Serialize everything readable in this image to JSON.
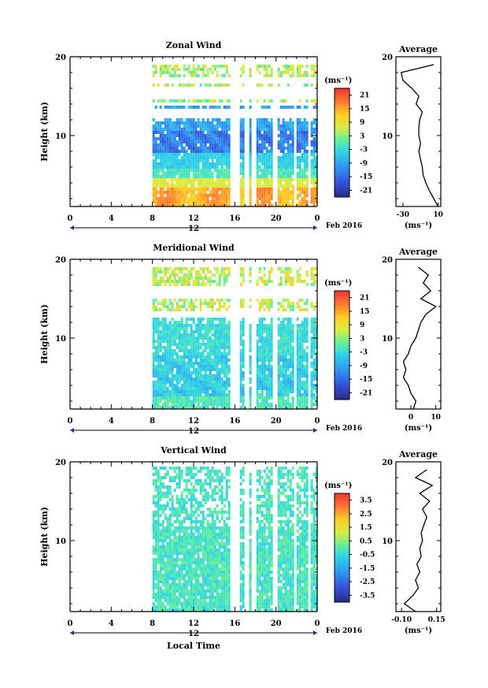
{
  "figure": {
    "date_label": "Feb 2016",
    "xlabel_bottom": "Local Time",
    "unit_label": "(ms⁻¹)",
    "axis_unit_label": "(ms⁻¹)",
    "average_title": "Average"
  },
  "chart_data": [
    {
      "type": "heatmap",
      "title": "Zonal Wind",
      "ylabel": "Height (km)",
      "xticks": [
        "0",
        "4",
        "8",
        "12",
        "16",
        "20",
        "0"
      ],
      "xlim": [
        0,
        24
      ],
      "day_label": "12",
      "yticks": [
        "20",
        "10"
      ],
      "ylim": [
        1,
        20
      ],
      "data_start_hour": 8,
      "colorbar_ticks": [
        "21",
        "15",
        "9",
        "3",
        "-3",
        "-9",
        "-15",
        "-21"
      ],
      "colorbar_range": [
        -24,
        24
      ],
      "profile": {
        "xticks": [
          "-30",
          "10"
        ],
        "x_tick_values": [
          -30,
          10
        ],
        "xlim": [
          -38,
          13
        ],
        "heights": [
          1,
          2,
          3,
          4,
          5,
          6,
          7,
          8,
          9,
          10,
          11,
          12,
          13,
          14,
          15,
          16,
          17,
          18,
          19
        ],
        "values": [
          10,
          5,
          0,
          -4,
          -7,
          -8,
          -10,
          -12,
          -10,
          -12,
          -12,
          -11,
          -8,
          -15,
          -12,
          -20,
          -30,
          -32,
          5
        ]
      }
    },
    {
      "type": "heatmap",
      "title": "Meridional Wind",
      "ylabel": "Height (km)",
      "xticks": [
        "0",
        "4",
        "8",
        "12",
        "16",
        "20",
        "0"
      ],
      "xlim": [
        0,
        24
      ],
      "day_label": "12",
      "yticks": [
        "20",
        "10"
      ],
      "ylim": [
        1,
        20
      ],
      "data_start_hour": 8,
      "colorbar_ticks": [
        "21",
        "15",
        "9",
        "3",
        "-3",
        "-9",
        "-15",
        "-21"
      ],
      "colorbar_range": [
        -24,
        24
      ],
      "profile": {
        "xticks": [
          "0",
          "10"
        ],
        "x_tick_values": [
          0,
          10
        ],
        "xlim": [
          -6,
          12
        ],
        "heights": [
          1,
          2,
          3,
          4,
          5,
          6,
          7,
          8,
          9,
          10,
          11,
          12,
          13,
          14,
          15,
          16,
          17,
          18,
          19
        ],
        "values": [
          1,
          2,
          0,
          -1,
          -3,
          -2,
          -3,
          -1,
          0,
          2,
          3,
          4,
          6,
          10,
          4,
          8,
          5,
          7,
          3
        ]
      }
    },
    {
      "type": "heatmap",
      "title": "Vertical Wind",
      "ylabel": "Height (km)",
      "xticks": [
        "0",
        "4",
        "8",
        "12",
        "16",
        "20",
        "0"
      ],
      "xlim": [
        0,
        24
      ],
      "day_label": "12",
      "yticks": [
        "20",
        "10"
      ],
      "ylim": [
        1,
        20
      ],
      "data_start_hour": 8,
      "colorbar_ticks": [
        "3.5",
        "2.5",
        "1.5",
        "0.5",
        "-0.5",
        "-1.5",
        "-2.5",
        "-3.5"
      ],
      "colorbar_range": [
        -4,
        4
      ],
      "profile": {
        "xticks": [
          "-0.10",
          "0.15"
        ],
        "x_tick_values": [
          -0.1,
          0.15
        ],
        "xlim": [
          -0.14,
          0.18
        ],
        "heights": [
          1,
          2,
          3,
          4,
          5,
          6,
          7,
          8,
          9,
          10,
          11,
          12,
          13,
          14,
          15,
          16,
          17,
          18,
          19
        ],
        "values": [
          0.0,
          -0.08,
          -0.02,
          0.02,
          0.0,
          0.03,
          0.01,
          0.04,
          0.03,
          0.05,
          0.04,
          0.06,
          0.08,
          0.05,
          0.1,
          0.03,
          0.12,
          0.0,
          0.08
        ]
      }
    }
  ]
}
